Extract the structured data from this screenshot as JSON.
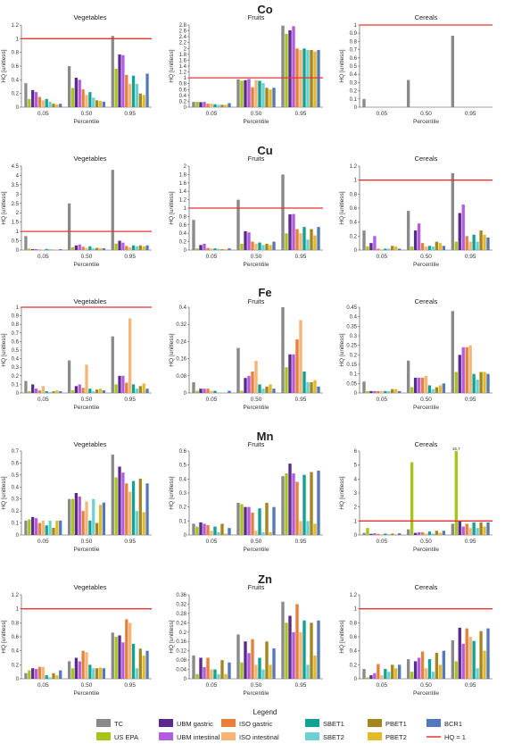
{
  "series_colors": [
    "#8a8a8a",
    "#a6c41a",
    "#5b2a8e",
    "#b45ce0",
    "#e8803a",
    "#f5b579",
    "#10a394",
    "#6fd0d3",
    "#a6851e",
    "#e2ba2a",
    "#5279be"
  ],
  "threshold_color": "#e83232",
  "legend": {
    "title": "Legend",
    "items": [
      "TC",
      "US EPA",
      "UBM gastric",
      "UBM intestinal",
      "ISO gastric",
      "ISO intestinal",
      "SBET1",
      "SBET2",
      "PBET1",
      "PBET2",
      "BCR1",
      "HQ = 1"
    ]
  },
  "chart_data": [
    {
      "element": "Co",
      "food": "Vegetables",
      "type": "bar",
      "categories": [
        "0.05",
        "0.50",
        "0.95"
      ],
      "xlabel": "Percentile",
      "ylabel": "HQ [unitless]",
      "ylim": [
        0,
        1.2
      ],
      "yticks": [
        0,
        0.2,
        0.4,
        0.6,
        0.8,
        1,
        1.2
      ],
      "threshold": 1,
      "values": [
        [
          0.35,
          0.12,
          0.25,
          0.22,
          0.15,
          0.1,
          0.12,
          0.08,
          0.05,
          0.04,
          0.05
        ],
        [
          0.6,
          0.28,
          0.43,
          0.4,
          0.26,
          0.18,
          0.22,
          0.14,
          0.1,
          0.09,
          0.08
        ],
        [
          1.04,
          0.56,
          0.77,
          0.76,
          0.47,
          0.34,
          0.46,
          0.34,
          0.2,
          0.18,
          0.49
        ]
      ]
    },
    {
      "element": "Co",
      "food": "Fruits",
      "type": "bar",
      "categories": [
        "0.05",
        "0.50",
        "0.95"
      ],
      "xlabel": "Percentile",
      "ylabel": "HQ [unitless]",
      "ylim": [
        0,
        2.8
      ],
      "yticks": [
        0,
        0.2,
        0.4,
        0.6,
        0.8,
        1,
        1.2,
        1.4,
        1.6,
        1.8,
        2,
        2.2,
        2.4,
        2.6,
        2.8
      ],
      "threshold": 1,
      "values": [
        [
          0.18,
          0.18,
          0.17,
          0.18,
          0.12,
          0.12,
          0.1,
          0.08,
          0.08,
          0.08,
          0.14
        ],
        [
          0.95,
          0.9,
          0.92,
          0.96,
          0.68,
          0.92,
          0.9,
          0.82,
          0.66,
          0.6,
          0.66
        ],
        [
          2.78,
          2.5,
          2.62,
          2.76,
          2.0,
          1.95,
          2.0,
          1.95,
          1.95,
          1.9,
          1.95
        ]
      ]
    },
    {
      "element": "Co",
      "food": "Cereals",
      "type": "bar",
      "categories": [
        "0.05",
        "0.50",
        "0.95"
      ],
      "xlabel": "Percentile",
      "ylabel": "HQ [unitless]",
      "ylim": [
        0,
        1
      ],
      "yticks": [
        0,
        0.1,
        0.2,
        0.3,
        0.4,
        0.5,
        0.6,
        0.7,
        0.8,
        0.9,
        1
      ],
      "threshold": 1,
      "values": [
        [
          0.1,
          0,
          0,
          0,
          0,
          0,
          0,
          0,
          0,
          0,
          0
        ],
        [
          0.33,
          0,
          0,
          0,
          0,
          0,
          0,
          0,
          0,
          0,
          0
        ],
        [
          0.87,
          0,
          0,
          0,
          0,
          0,
          0,
          0,
          0,
          0,
          0
        ]
      ]
    },
    {
      "element": "Cu",
      "food": "Vegetables",
      "type": "bar",
      "categories": [
        "0.05",
        "0.50",
        "0.95"
      ],
      "xlabel": "Percentile",
      "ylabel": "HQ [unitless]",
      "ylim": [
        0,
        4.5
      ],
      "yticks": [
        0,
        0.5,
        1,
        1.5,
        2,
        2.5,
        3,
        3.5,
        4,
        4.5
      ],
      "threshold": 1,
      "values": [
        [
          0.75,
          0.08,
          0.05,
          0.05,
          0.03,
          0.02,
          0.06,
          0.05,
          0.02,
          0.02,
          0.05
        ],
        [
          2.5,
          0.15,
          0.25,
          0.3,
          0.18,
          0.12,
          0.2,
          0.1,
          0.12,
          0.1,
          0.1
        ],
        [
          4.3,
          0.35,
          0.5,
          0.4,
          0.22,
          0.15,
          0.25,
          0.2,
          0.25,
          0.2,
          0.25
        ]
      ]
    },
    {
      "element": "Cu",
      "food": "Fruits",
      "type": "bar",
      "categories": [
        "0.05",
        "0.50",
        "0.95"
      ],
      "xlabel": "Percentile",
      "ylabel": "HQ [unitless]",
      "ylim": [
        0,
        2
      ],
      "yticks": [
        0,
        0.2,
        0.4,
        0.6,
        0.8,
        1,
        1.2,
        1.4,
        1.6,
        1.8,
        2
      ],
      "threshold": 1,
      "values": [
        [
          0.72,
          0.04,
          0.12,
          0.15,
          0.05,
          0.04,
          0.04,
          0.03,
          0.02,
          0.02,
          0.04
        ],
        [
          1.2,
          0.15,
          0.45,
          0.42,
          0.2,
          0.15,
          0.18,
          0.12,
          0.15,
          0.12,
          0.2
        ],
        [
          1.8,
          0.4,
          0.85,
          0.86,
          0.5,
          0.4,
          0.55,
          0.25,
          0.5,
          0.35,
          0.55
        ]
      ]
    },
    {
      "element": "Cu",
      "food": "Cereals",
      "type": "bar",
      "categories": [
        "0.05",
        "0.50",
        "0.95"
      ],
      "xlabel": "Percentile",
      "ylabel": "HQ [unitless]",
      "ylim": [
        0,
        1.2
      ],
      "yticks": [
        0,
        0.2,
        0.4,
        0.6,
        0.8,
        1,
        1.2
      ],
      "threshold": 1,
      "values": [
        [
          0.28,
          0.05,
          0.1,
          0.2,
          0.02,
          0.01,
          0.02,
          0.02,
          0.06,
          0.05,
          0.02
        ],
        [
          0.56,
          0.05,
          0.28,
          0.38,
          0.1,
          0.05,
          0.06,
          0.05,
          0.12,
          0.1,
          0.06
        ],
        [
          1.1,
          0.12,
          0.53,
          0.65,
          0.2,
          0.12,
          0.22,
          0.12,
          0.28,
          0.22,
          0.18
        ]
      ]
    },
    {
      "element": "Fe",
      "food": "Vegetables",
      "type": "bar",
      "categories": [
        "0.05",
        "0.50",
        "0.95"
      ],
      "xlabel": "Percentile",
      "ylabel": "HQ [unitless]",
      "ylim": [
        0,
        1
      ],
      "yticks": [
        0,
        0.1,
        0.2,
        0.3,
        0.4,
        0.5,
        0.6,
        0.7,
        0.8,
        0.9,
        1
      ],
      "threshold": 1,
      "values": [
        [
          0.14,
          0.02,
          0.1,
          0.05,
          0.03,
          0.08,
          0.02,
          0.01,
          0.02,
          0.03,
          0.02
        ],
        [
          0.38,
          0.03,
          0.08,
          0.1,
          0.06,
          0.33,
          0.05,
          0.02,
          0.04,
          0.05,
          0.03
        ],
        [
          0.66,
          0.1,
          0.2,
          0.2,
          0.12,
          0.87,
          0.1,
          0.05,
          0.08,
          0.11,
          0.05
        ]
      ]
    },
    {
      "element": "Fe",
      "food": "Fruits",
      "type": "bar",
      "categories": [
        "0.05",
        "0.50",
        "0.95"
      ],
      "xlabel": "Percentile",
      "ylabel": "HQ [unitless]",
      "ylim": [
        0,
        0.4
      ],
      "yticks": [
        0,
        0.08,
        0.16,
        0.24,
        0.32,
        0.4
      ],
      "threshold": 1,
      "values": [
        [
          0.05,
          0.01,
          0.02,
          0.02,
          0.02,
          0.01,
          0.01,
          0,
          0,
          0,
          0.01
        ],
        [
          0.21,
          0.01,
          0.07,
          0.08,
          0.1,
          0.15,
          0.04,
          0.02,
          0.03,
          0.04,
          0.02
        ],
        [
          0.4,
          0.12,
          0.18,
          0.18,
          0.25,
          0.34,
          0.1,
          0.05,
          0.05,
          0.06,
          0.03
        ]
      ]
    },
    {
      "element": "Fe",
      "food": "Cereals",
      "type": "bar",
      "categories": [
        "0.05",
        "0.50",
        "0.95"
      ],
      "xlabel": "Percentile",
      "ylabel": "HQ [unitless]",
      "ylim": [
        0,
        0.45
      ],
      "yticks": [
        0,
        0.05,
        0.1,
        0.15,
        0.2,
        0.25,
        0.3,
        0.35,
        0.4,
        0.45
      ],
      "threshold": 1,
      "values": [
        [
          0.06,
          0.01,
          0.01,
          0.01,
          0.01,
          0.01,
          0.01,
          0.01,
          0.02,
          0.02,
          0.01
        ],
        [
          0.17,
          0.03,
          0.08,
          0.08,
          0.08,
          0.09,
          0.04,
          0.02,
          0.03,
          0.04,
          0.05
        ],
        [
          0.43,
          0.11,
          0.2,
          0.24,
          0.24,
          0.25,
          0.1,
          0.07,
          0.11,
          0.11,
          0.1
        ]
      ]
    },
    {
      "element": "Mn",
      "food": "Vegetables",
      "type": "bar",
      "categories": [
        "0.05",
        "0.50",
        "0.95"
      ],
      "xlabel": "Percentile",
      "ylabel": "HQ [unitless]",
      "ylim": [
        0,
        0.7
      ],
      "yticks": [
        0,
        0.1,
        0.2,
        0.3,
        0.4,
        0.5,
        0.6,
        0.7
      ],
      "threshold": 1,
      "values": [
        [
          0.12,
          0.13,
          0.15,
          0.14,
          0.1,
          0.12,
          0.08,
          0.12,
          0.06,
          0.12,
          0.12
        ],
        [
          0.3,
          0.3,
          0.35,
          0.32,
          0.2,
          0.28,
          0.12,
          0.3,
          0.1,
          0.25,
          0.27
        ],
        [
          0.67,
          0.48,
          0.57,
          0.52,
          0.43,
          0.36,
          0.45,
          0.2,
          0.47,
          0.19,
          0.43
        ]
      ]
    },
    {
      "element": "Mn",
      "food": "Fruits",
      "type": "bar",
      "categories": [
        "0.05",
        "0.50",
        "0.95"
      ],
      "xlabel": "Percentile",
      "ylabel": "HQ [unitless]",
      "ylim": [
        0,
        0.6
      ],
      "yticks": [
        0,
        0.1,
        0.2,
        0.3,
        0.4,
        0.5,
        0.6
      ],
      "threshold": 1,
      "values": [
        [
          0.08,
          0.06,
          0.09,
          0.08,
          0.07,
          0.03,
          0.06,
          0.02,
          0.08,
          0.01,
          0.05
        ],
        [
          0.23,
          0.22,
          0.2,
          0.2,
          0.16,
          0.03,
          0.19,
          0.02,
          0.23,
          0.02,
          0.2
        ],
        [
          0.42,
          0.44,
          0.51,
          0.44,
          0.38,
          0.1,
          0.43,
          0.1,
          0.45,
          0.08,
          0.46
        ]
      ]
    },
    {
      "element": "Mn",
      "food": "Cereals",
      "type": "bar",
      "categories": [
        "0.05",
        "0.50",
        "0.95"
      ],
      "xlabel": "Percentile",
      "ylabel": "HQ [unitless]",
      "ylim": [
        0,
        6
      ],
      "yticks": [
        0,
        1,
        2,
        3,
        4,
        5,
        6
      ],
      "threshold": 1,
      "values": [
        [
          0.15,
          0.5,
          0.08,
          0.12,
          0.08,
          0.05,
          0.1,
          0.06,
          0.1,
          0.05,
          0.12
        ],
        [
          0.4,
          5.2,
          0.15,
          0.2,
          0.2,
          0.1,
          0.25,
          0.1,
          0.3,
          0.15,
          0.3
        ],
        [
          0.8,
          15.7,
          1.0,
          0.6,
          0.8,
          0.5,
          0.9,
          0.5,
          0.9,
          0.6,
          0.9
        ]
      ],
      "annotation": "15.7"
    },
    {
      "element": "Zn",
      "food": "Vegetables",
      "type": "bar",
      "categories": [
        "0.05",
        "0.50",
        "0.95"
      ],
      "xlabel": "Percentile",
      "ylabel": "HQ [unitless]",
      "ylim": [
        0,
        1.2
      ],
      "yticks": [
        0,
        0.2,
        0.4,
        0.6,
        0.8,
        1,
        1.2
      ],
      "threshold": 1,
      "values": [
        [
          0.08,
          0.12,
          0.15,
          0.14,
          0.17,
          0.17,
          0.05,
          0.02,
          0.08,
          0.05,
          0.12
        ],
        [
          0.25,
          0.15,
          0.3,
          0.25,
          0.4,
          0.38,
          0.2,
          0.15,
          0.15,
          0.16,
          0.15
        ],
        [
          0.66,
          0.6,
          0.62,
          0.52,
          0.85,
          0.8,
          0.5,
          0.15,
          0.43,
          0.33,
          0.4
        ]
      ]
    },
    {
      "element": "Zn",
      "food": "Fruits",
      "type": "bar",
      "categories": [
        "0.05",
        "0.50",
        "0.95"
      ],
      "xlabel": "Percentile",
      "ylabel": "HQ [unitless]",
      "ylim": [
        0,
        0.36
      ],
      "yticks": [
        0,
        0.04,
        0.08,
        0.12,
        0.16,
        0.2,
        0.24,
        0.28,
        0.32,
        0.36
      ],
      "threshold": 1,
      "values": [
        [
          0.1,
          0.02,
          0.09,
          0.05,
          0.09,
          0.04,
          0.04,
          0.02,
          0.08,
          0.02,
          0.07
        ],
        [
          0.19,
          0.07,
          0.16,
          0.11,
          0.17,
          0.06,
          0.09,
          0.04,
          0.16,
          0.06,
          0.13
        ],
        [
          0.33,
          0.24,
          0.27,
          0.2,
          0.32,
          0.2,
          0.25,
          0.06,
          0.24,
          0.1,
          0.25
        ]
      ]
    },
    {
      "element": "Zn",
      "food": "Cereals",
      "type": "bar",
      "categories": [
        "0.05",
        "0.50",
        "0.95"
      ],
      "xlabel": "Percentile",
      "ylabel": "HQ [unitless]",
      "ylim": [
        0,
        1.2
      ],
      "yticks": [
        0,
        0.2,
        0.4,
        0.6,
        0.8,
        1,
        1.2
      ],
      "threshold": 1,
      "values": [
        [
          0.14,
          0.02,
          0.05,
          0.08,
          0.21,
          0.05,
          0.14,
          0.1,
          0.2,
          0.15,
          0.2
        ],
        [
          0.28,
          0.1,
          0.25,
          0.3,
          0.39,
          0.15,
          0.28,
          0.1,
          0.37,
          0.2,
          0.4
        ],
        [
          0.55,
          0.25,
          0.73,
          0.5,
          0.72,
          0.6,
          0.54,
          0.15,
          0.68,
          0.4,
          0.72
        ]
      ]
    }
  ]
}
